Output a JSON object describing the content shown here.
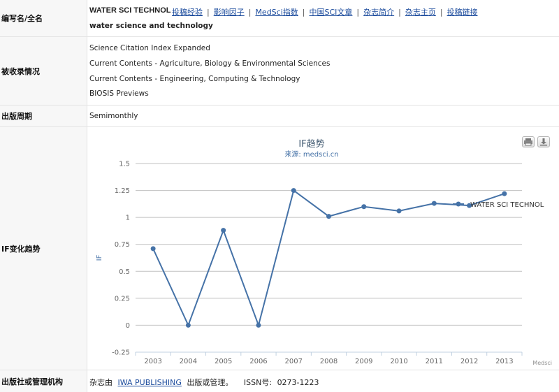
{
  "rows": {
    "name": {
      "label": "编写名/全名",
      "abbr": "WATER SCI TECHNOL",
      "links": [
        "投稿经验",
        "影响因子",
        "MedSci指数",
        "中国SCI文章",
        "杂志简介",
        "杂志主页",
        "投稿链接"
      ],
      "fullname": "water science and technology"
    },
    "index": {
      "label": "被收录情况",
      "items": [
        "Science Citation Index Expanded",
        "Current Contents - Agriculture, Biology & Environmental Sciences",
        "Current Contents - Engineering, Computing & Technology",
        "BIOSIS Previews"
      ]
    },
    "period": {
      "label": "出版周期",
      "value": "Semimonthly"
    },
    "trend": {
      "label": "IF变化趋势"
    },
    "publisher": {
      "label": "出版社或管理机构",
      "prefix": "杂志由",
      "name": "IWA PUBLISHING",
      "suffix": "出版或管理。",
      "issn_label": "ISSN号:",
      "issn": "0273-1223"
    }
  },
  "icons": {
    "print": "print-icon",
    "download": "download-icon"
  },
  "chart_data": {
    "type": "line",
    "title": "IF趋势",
    "subtitle": "来源: medsci.cn",
    "ylabel": "IF",
    "xlabel": "",
    "credit": "Medsci",
    "categories": [
      "2003",
      "2004",
      "2005",
      "2006",
      "2007",
      "2008",
      "2009",
      "2010",
      "2011",
      "2012",
      "2013"
    ],
    "y_ticks": [
      "-0.25",
      "0",
      "0.25",
      "0.5",
      "0.75",
      "1",
      "1.25",
      "1.5"
    ],
    "ylim": [
      -0.25,
      1.5
    ],
    "grid": true,
    "series": [
      {
        "name": "WATER SCI TECHNOL",
        "color": "#4572a7",
        "values": [
          0.71,
          0,
          0.88,
          0,
          1.25,
          1.01,
          1.1,
          1.06,
          1.13,
          1.11,
          1.22
        ]
      }
    ]
  }
}
